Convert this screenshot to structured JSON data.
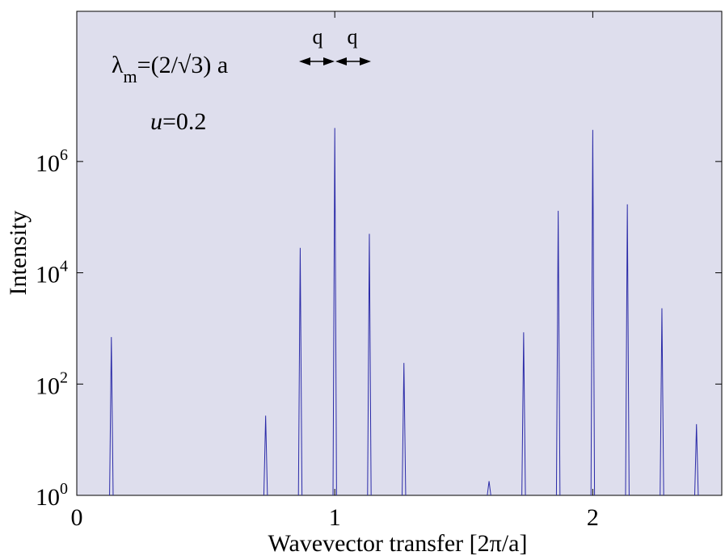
{
  "chart_data": {
    "type": "line",
    "xlabel": "Wavevector transfer [2π/a]",
    "ylabel": "Intensity",
    "xlim": [
      0,
      2.5
    ],
    "ylim": [
      1,
      500000000
    ],
    "yscale": "log",
    "x_ticks": [
      {
        "value": 0,
        "label": "0"
      },
      {
        "value": 1,
        "label": "1"
      },
      {
        "value": 2,
        "label": "2"
      }
    ],
    "y_ticks": [
      {
        "value": 1,
        "base": "10",
        "exp": "0"
      },
      {
        "value": 100,
        "base": "10",
        "exp": "2"
      },
      {
        "value": 10000,
        "base": "10",
        "exp": "4"
      },
      {
        "value": 1000000,
        "base": "10",
        "exp": "6"
      }
    ],
    "grid": false,
    "background_color": "#dedeed",
    "line_color": "#2b2ba8",
    "peaks": [
      {
        "x": 0.134,
        "y": 700
      },
      {
        "x": 0.732,
        "y": 27
      },
      {
        "x": 0.866,
        "y": 28000
      },
      {
        "x": 1.0,
        "y": 4000000
      },
      {
        "x": 1.134,
        "y": 50000
      },
      {
        "x": 1.268,
        "y": 240
      },
      {
        "x": 1.598,
        "y": 1.8
      },
      {
        "x": 1.732,
        "y": 850
      },
      {
        "x": 1.866,
        "y": 130000
      },
      {
        "x": 2.0,
        "y": 3700000
      },
      {
        "x": 2.134,
        "y": 170000
      },
      {
        "x": 2.268,
        "y": 2300
      },
      {
        "x": 2.402,
        "y": 19
      }
    ],
    "annotations": {
      "lambda_symbol": "λ",
      "lambda_sub": "m",
      "lambda_rest": "=(2/√3) a",
      "u_symbol": "u",
      "u_rest": "=0.2",
      "q_left": "q",
      "q_right": "q"
    }
  }
}
